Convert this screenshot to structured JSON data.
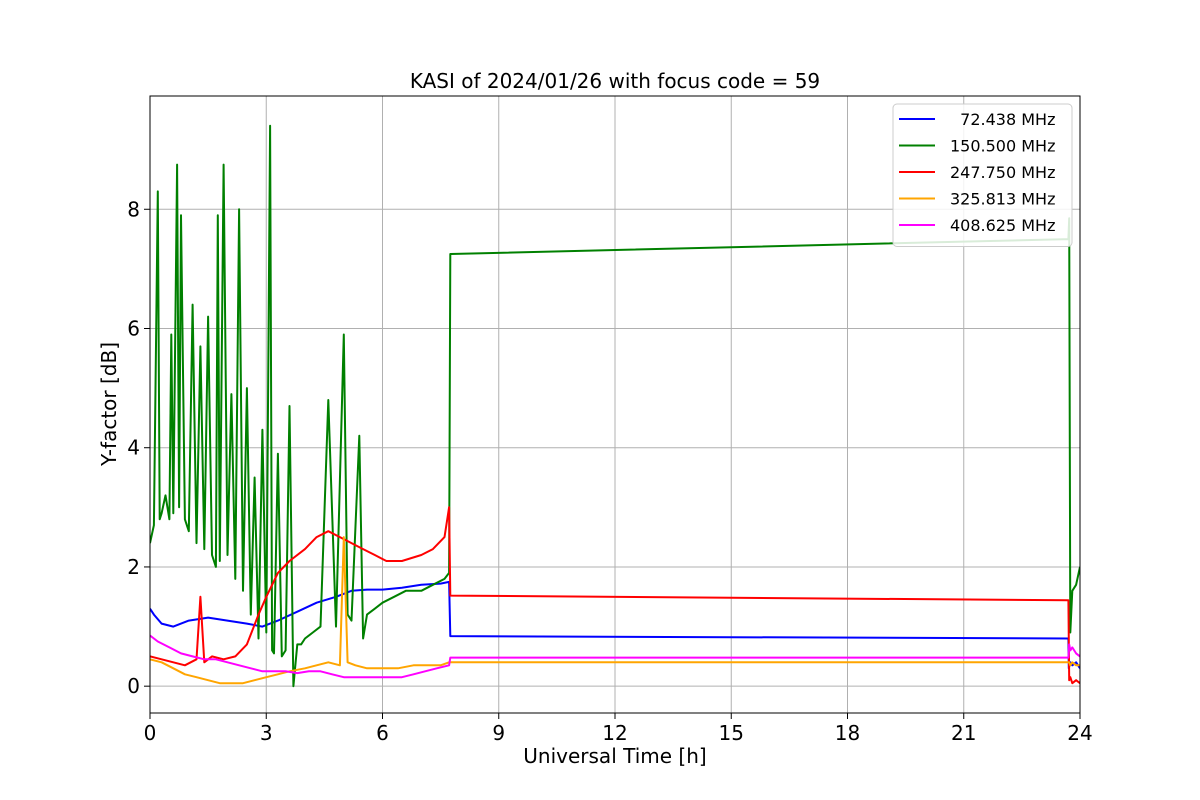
{
  "chart_data": {
    "type": "line",
    "title": "KASI of 2024/01/26 with focus code = 59",
    "xlabel": "Universal Time [h]",
    "ylabel": "Y-factor [dB]",
    "xlim": [
      0,
      24
    ],
    "ylim": [
      -0.45,
      9.9
    ],
    "xticks": [
      0,
      3,
      6,
      9,
      12,
      15,
      18,
      21,
      24
    ],
    "yticks": [
      0,
      2,
      4,
      6,
      8
    ],
    "grid": true,
    "legend_position": "top-right",
    "series": [
      {
        "name": "  72.438 MHz",
        "color": "#0000ff",
        "x": [
          0.0,
          0.1,
          0.3,
          0.6,
          1.0,
          1.5,
          2.0,
          2.5,
          2.9,
          3.3,
          3.8,
          4.3,
          4.8,
          5.2,
          5.6,
          6.0,
          6.5,
          7.0,
          7.5,
          7.72,
          7.75,
          7.76,
          23.7,
          23.71,
          23.75,
          23.8,
          23.9,
          24.0
        ],
        "y": [
          1.3,
          1.2,
          1.05,
          1.0,
          1.1,
          1.15,
          1.1,
          1.05,
          1.0,
          1.1,
          1.25,
          1.4,
          1.5,
          1.6,
          1.62,
          1.62,
          1.65,
          1.7,
          1.72,
          1.75,
          0.84,
          0.84,
          0.8,
          0.3,
          0.4,
          0.35,
          0.4,
          0.3
        ]
      },
      {
        "name": "150.500 MHz",
        "color": "#008000",
        "x": [
          0.0,
          0.1,
          0.2,
          0.25,
          0.3,
          0.4,
          0.5,
          0.55,
          0.6,
          0.7,
          0.75,
          0.8,
          0.9,
          1.0,
          1.1,
          1.2,
          1.3,
          1.4,
          1.5,
          1.6,
          1.7,
          1.75,
          1.8,
          1.9,
          2.0,
          2.1,
          2.2,
          2.3,
          2.4,
          2.5,
          2.6,
          2.7,
          2.8,
          2.9,
          3.0,
          3.1,
          3.15,
          3.2,
          3.3,
          3.4,
          3.5,
          3.6,
          3.7,
          3.8,
          3.9,
          4.0,
          4.2,
          4.4,
          4.6,
          4.8,
          5.0,
          5.1,
          5.2,
          5.4,
          5.5,
          5.6,
          5.8,
          6.0,
          6.3,
          6.6,
          7.0,
          7.3,
          7.6,
          7.72,
          7.75,
          7.76,
          23.7,
          23.72,
          23.75,
          23.8,
          23.9,
          24.0
        ],
        "y": [
          2.4,
          2.7,
          8.3,
          2.8,
          2.9,
          3.2,
          2.8,
          5.9,
          2.9,
          8.75,
          3.0,
          7.9,
          2.8,
          2.6,
          6.4,
          2.4,
          5.7,
          2.3,
          6.2,
          2.2,
          2.0,
          7.9,
          2.1,
          8.75,
          2.2,
          4.9,
          1.8,
          8.0,
          1.6,
          5.0,
          1.2,
          3.5,
          0.8,
          4.3,
          0.9,
          9.4,
          0.6,
          0.55,
          3.9,
          0.5,
          0.6,
          4.7,
          0.0,
          0.7,
          0.7,
          0.8,
          0.9,
          1.0,
          4.8,
          1.0,
          5.9,
          1.2,
          1.1,
          4.2,
          0.8,
          1.2,
          1.3,
          1.4,
          1.5,
          1.6,
          1.6,
          1.7,
          1.8,
          1.9,
          7.25,
          7.25,
          7.5,
          7.85,
          0.9,
          1.6,
          1.7,
          2.0
        ]
      },
      {
        "name": "247.750 MHz",
        "color": "#ff0000",
        "x": [
          0.0,
          0.3,
          0.6,
          0.9,
          1.2,
          1.3,
          1.4,
          1.6,
          1.9,
          2.2,
          2.5,
          2.8,
          3.0,
          3.3,
          3.6,
          4.0,
          4.3,
          4.6,
          4.9,
          5.2,
          5.5,
          5.8,
          6.1,
          6.5,
          7.0,
          7.3,
          7.6,
          7.72,
          7.75,
          7.76,
          23.7,
          23.72,
          23.75,
          23.8,
          23.9,
          24.0
        ],
        "y": [
          0.5,
          0.45,
          0.4,
          0.35,
          0.45,
          1.5,
          0.4,
          0.5,
          0.45,
          0.5,
          0.7,
          1.2,
          1.5,
          1.9,
          2.1,
          2.3,
          2.5,
          2.6,
          2.5,
          2.4,
          2.3,
          2.2,
          2.1,
          2.1,
          2.2,
          2.3,
          2.5,
          3.0,
          1.52,
          1.52,
          1.44,
          0.1,
          0.15,
          0.05,
          0.1,
          0.05
        ]
      },
      {
        "name": "325.813 MHz",
        "color": "#ffa500",
        "x": [
          0.0,
          0.3,
          0.6,
          0.9,
          1.2,
          1.5,
          1.8,
          2.1,
          2.4,
          2.7,
          3.0,
          3.3,
          3.6,
          4.0,
          4.3,
          4.6,
          4.9,
          5.0,
          5.1,
          5.3,
          5.6,
          6.0,
          6.4,
          6.8,
          7.2,
          7.5,
          7.72,
          7.75,
          7.76,
          23.7,
          23.72,
          23.75,
          23.8,
          23.9,
          24.0
        ],
        "y": [
          0.45,
          0.4,
          0.3,
          0.2,
          0.15,
          0.1,
          0.05,
          0.05,
          0.05,
          0.1,
          0.15,
          0.2,
          0.25,
          0.3,
          0.35,
          0.4,
          0.35,
          2.5,
          0.4,
          0.35,
          0.3,
          0.3,
          0.3,
          0.35,
          0.35,
          0.35,
          0.4,
          0.4,
          0.4,
          0.4,
          0.4,
          0.35,
          0.4,
          0.35,
          0.35
        ]
      },
      {
        "name": "408.625 MHz",
        "color": "#ff00ff",
        "x": [
          0.0,
          0.2,
          0.5,
          0.8,
          1.1,
          1.4,
          1.7,
          2.0,
          2.3,
          2.6,
          2.9,
          3.2,
          3.5,
          3.8,
          4.1,
          4.4,
          4.7,
          5.0,
          5.3,
          5.6,
          5.9,
          6.2,
          6.5,
          6.8,
          7.1,
          7.4,
          7.72,
          7.75,
          7.76,
          23.7,
          23.72,
          23.75,
          23.8,
          23.9,
          24.0
        ],
        "y": [
          0.85,
          0.75,
          0.65,
          0.55,
          0.5,
          0.45,
          0.45,
          0.4,
          0.35,
          0.3,
          0.25,
          0.25,
          0.25,
          0.22,
          0.25,
          0.25,
          0.2,
          0.15,
          0.15,
          0.15,
          0.15,
          0.15,
          0.15,
          0.2,
          0.25,
          0.3,
          0.35,
          0.48,
          0.48,
          0.48,
          0.7,
          0.6,
          0.65,
          0.55,
          0.5
        ]
      }
    ]
  }
}
